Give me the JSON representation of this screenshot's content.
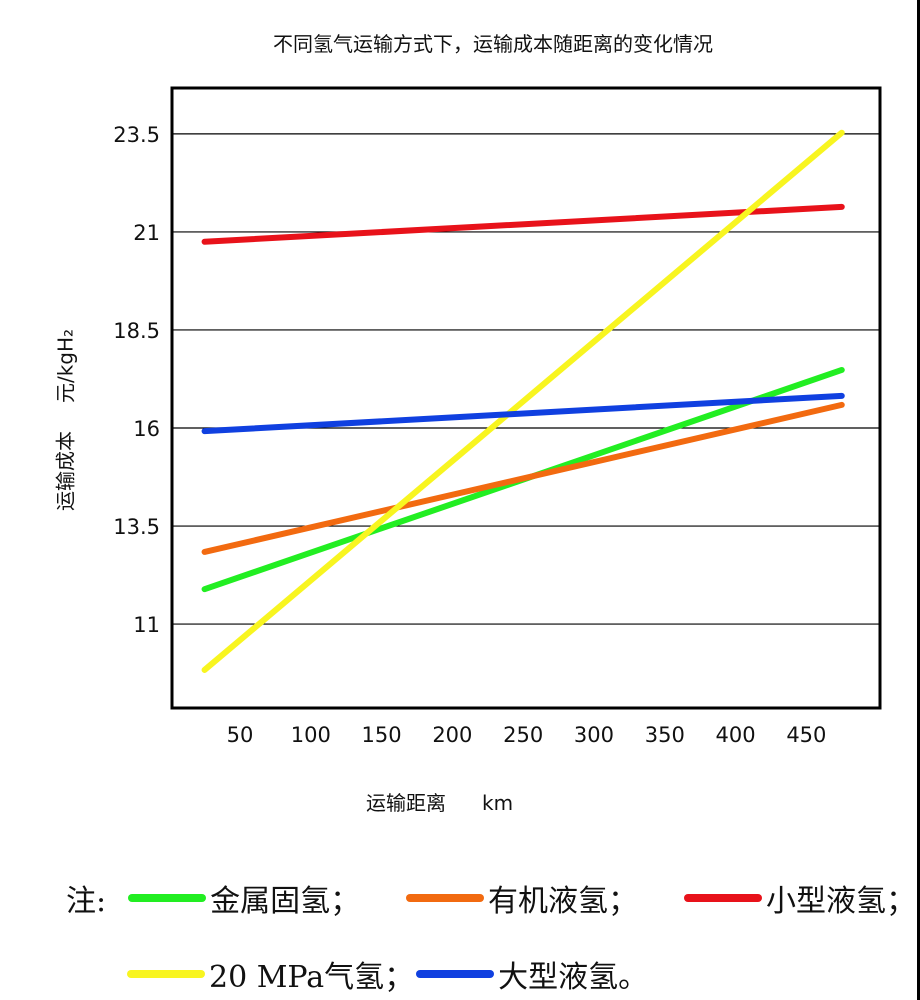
{
  "chart_data": {
    "type": "line",
    "title": "不同氢气运输方式下，运输成本随距离的变化情况",
    "xlabel": "运输距离",
    "xunit": "km",
    "ylabel": "运输成本",
    "yunit": "元/kgH₂",
    "xlim": [
      2,
      502
    ],
    "ylim": [
      8.86,
      24.67
    ],
    "xticks": [
      50,
      100,
      150,
      200,
      250,
      300,
      350,
      400,
      450
    ],
    "yticks": [
      11,
      13.5,
      16,
      18.5,
      21,
      23.5
    ],
    "ytick_labels": [
      "11",
      "13.5",
      "16",
      "18.5",
      "21",
      "23.5"
    ],
    "grid": "horizontal",
    "legend_position": "bottom",
    "legend_prefix": "注:",
    "series": [
      {
        "name": "金属固氢",
        "sep": "；",
        "color": "#22ee22",
        "x": [
          25,
          475
        ],
        "y": [
          11.89,
          17.48
        ]
      },
      {
        "name": "有机液氢",
        "sep": "；",
        "color": "#f26a10",
        "x": [
          25,
          475
        ],
        "y": [
          12.84,
          16.59
        ]
      },
      {
        "name": "小型液氢",
        "sep": "；",
        "color": "#e8121a",
        "x": [
          25,
          475
        ],
        "y": [
          20.75,
          21.64
        ]
      },
      {
        "name": "20 MPa气氢",
        "sep": "；",
        "color": "#f8f520",
        "x": [
          25,
          475
        ],
        "y": [
          9.83,
          23.53
        ]
      },
      {
        "name": "大型液氢",
        "sep": "。",
        "color": "#1040e0",
        "x": [
          25,
          475
        ],
        "y": [
          15.92,
          16.82
        ]
      }
    ]
  }
}
